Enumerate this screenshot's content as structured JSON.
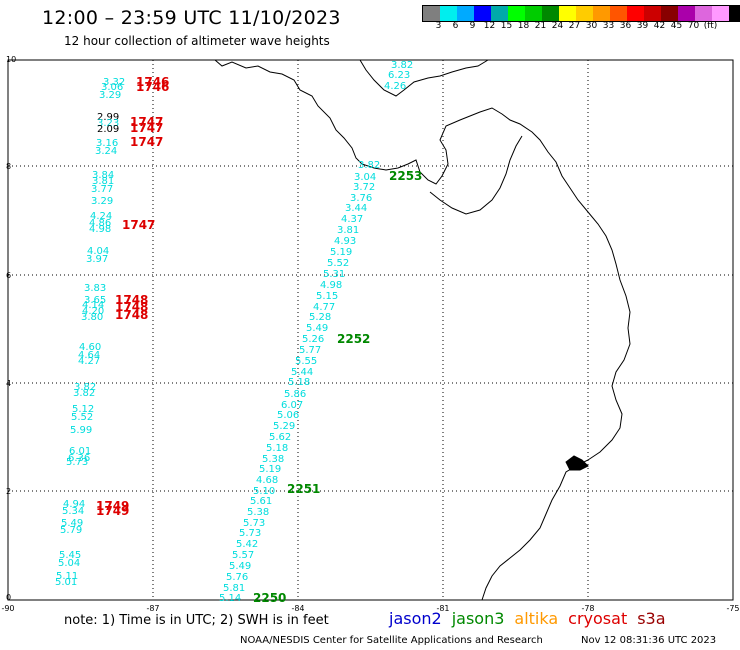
{
  "header": {
    "title": "12:00 – 23:59 UTC 11/10/2023",
    "subtitle": "12 hour collection of altimeter wave heights"
  },
  "colorbar": {
    "colors": [
      "#7f7f7f",
      "#00eeee",
      "#00aaff",
      "#0000ff",
      "#00aaaa",
      "#00ff00",
      "#00cc00",
      "#008800",
      "#ffff00",
      "#ffcc00",
      "#ff9900",
      "#ff5500",
      "#ff0000",
      "#cc0000",
      "#880000",
      "#aa00aa",
      "#dd66dd",
      "#ff99ff",
      "#000000"
    ],
    "labels": [
      "3",
      "6",
      "9",
      "12",
      "15",
      "18",
      "21",
      "24",
      "27",
      "30",
      "33",
      "36",
      "39",
      "42",
      "45",
      "70",
      "(ft)"
    ]
  },
  "axes": {
    "lat_labels": [
      "10",
      "8",
      "6",
      "4",
      "2",
      "0"
    ],
    "lon_labels": [
      "-90",
      "-87",
      "-84",
      "-81",
      "-78",
      "-75"
    ]
  },
  "footer": {
    "note": "note: 1) Time is in UTC; 2) SWH is in feet",
    "legend": [
      {
        "name": "jason2",
        "color": "#0000cc"
      },
      {
        "name": "jason3",
        "color": "#008800"
      },
      {
        "name": "altika",
        "color": "#ff9900"
      },
      {
        "name": "cryosat",
        "color": "#dd0000"
      },
      {
        "name": "s3a",
        "color": "#990000"
      }
    ],
    "credit": "NOAA/NESDIS Center for Satellite Applications and Research",
    "timestamp": "Nov 12 08:31:36 UTC 2023"
  },
  "tracks": {
    "left_track": {
      "color": "#00dddd",
      "values": [
        "3.32",
        "3.06",
        "3.29",
        "2.99",
        "3.23",
        "2.09",
        "3.16",
        "3.24",
        "3.84",
        "3.81",
        "3.77",
        "3.29",
        "4.24",
        "4.86",
        "4.98",
        "4.04",
        "3.97",
        "3.83",
        "3.65",
        "4.14",
        "4.20",
        "3.80",
        "4.60",
        "4.64",
        "4.27",
        "3.82",
        "3.82",
        "5.12",
        "5.52",
        "5.99",
        "6.01",
        "6.36",
        "5.73",
        "4.94",
        "5.34",
        "5.49",
        "5.79",
        "5.45",
        "5.04",
        "5.11",
        "5.01"
      ]
    },
    "diag_track": {
      "color": "#00dddd",
      "values": [
        "3.82",
        "6.23",
        "4.26",
        "3.82",
        "3.04",
        "3.72",
        "3.76",
        "3.44",
        "4.37",
        "3.81",
        "4.93",
        "5.19",
        "5.52",
        "5.31",
        "4.98",
        "5.15",
        "4.77",
        "5.28",
        "5.49",
        "5.26",
        "5.77",
        "5.55",
        "5.44",
        "5.18",
        "5.86",
        "6.07",
        "5.06",
        "5.29",
        "5.62",
        "5.18",
        "5.38",
        "5.19",
        "4.68",
        "5.10",
        "5.61",
        "5.38",
        "5.73",
        "5.73",
        "5.42",
        "5.57",
        "5.49",
        "5.76",
        "5.81",
        "5.14"
      ]
    },
    "time_labels_cryosat": [
      "1746",
      "1746",
      "1747",
      "1747",
      "1747",
      "1747",
      "1748",
      "1748",
      "1748",
      "1749",
      "1749"
    ],
    "time_labels_jason3": [
      "2253",
      "2252",
      "2251",
      "2250"
    ]
  }
}
